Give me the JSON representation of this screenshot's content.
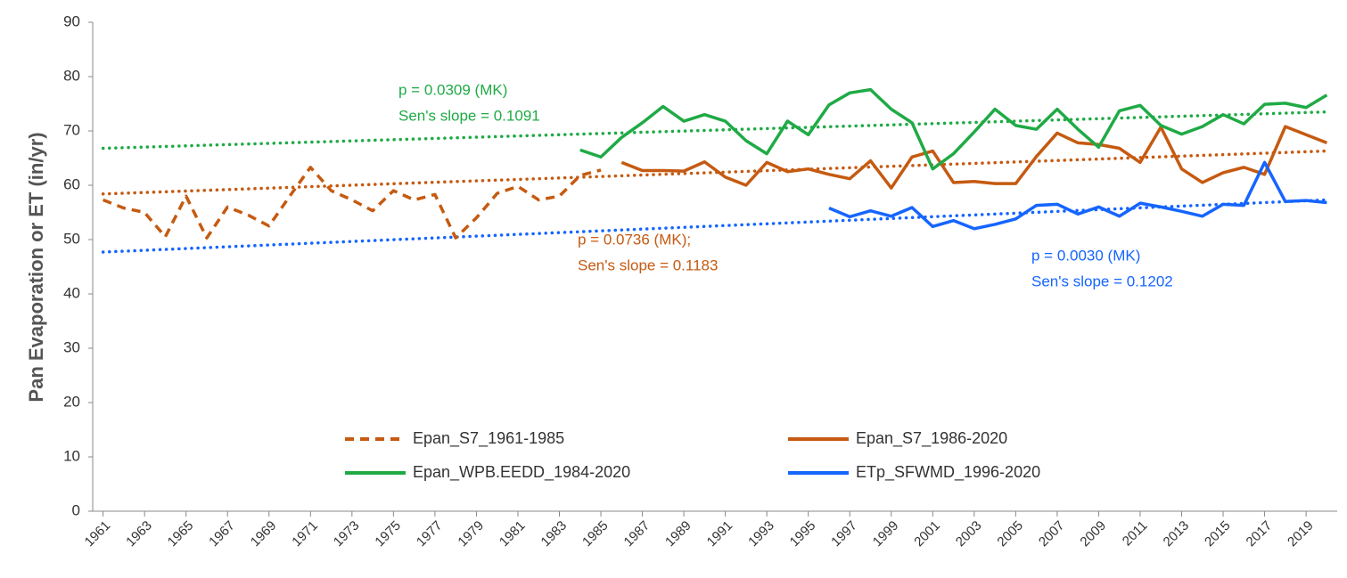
{
  "chart_data": {
    "type": "line",
    "y_label": "Pan Evaporation or ET (in/yr)",
    "x": [
      1961,
      1962,
      1963,
      1964,
      1965,
      1966,
      1967,
      1968,
      1969,
      1970,
      1971,
      1972,
      1973,
      1974,
      1975,
      1976,
      1977,
      1978,
      1979,
      1980,
      1981,
      1982,
      1983,
      1984,
      1985,
      1986,
      1987,
      1988,
      1989,
      1990,
      1991,
      1992,
      1993,
      1994,
      1995,
      1996,
      1997,
      1998,
      1999,
      2000,
      2001,
      2002,
      2003,
      2004,
      2005,
      2006,
      2007,
      2008,
      2009,
      2010,
      2011,
      2012,
      2013,
      2014,
      2015,
      2016,
      2017,
      2018,
      2019,
      2020
    ],
    "xlim": [
      1960.5,
      2020.5
    ],
    "xticks": [
      1961,
      1963,
      1965,
      1967,
      1969,
      1971,
      1973,
      1975,
      1977,
      1979,
      1981,
      1983,
      1985,
      1987,
      1989,
      1991,
      1993,
      1995,
      1997,
      1999,
      2001,
      2003,
      2005,
      2007,
      2009,
      2011,
      2013,
      2015,
      2017,
      2019
    ],
    "ylim": [
      0,
      90
    ],
    "yticks": [
      0,
      10,
      20,
      30,
      40,
      50,
      60,
      70,
      80,
      90
    ],
    "series": [
      {
        "name": "Epan_S7_1961-1985",
        "color": "#c55a11",
        "dash": true,
        "values": [
          57.3,
          55.8,
          55,
          50.5,
          58,
          50.3,
          56,
          54.5,
          52.5,
          58,
          63.3,
          59,
          57.3,
          55.3,
          59,
          57.3,
          58.3,
          50.3,
          54,
          58.5,
          59.8,
          57.3,
          58,
          61.8,
          62.8,
          null,
          null,
          null,
          null,
          null,
          null,
          null,
          null,
          null,
          null,
          null,
          null,
          null,
          null,
          null,
          null,
          null,
          null,
          null,
          null,
          null,
          null,
          null,
          null,
          null,
          null,
          null,
          null,
          null,
          null,
          null,
          null,
          null,
          null,
          null
        ]
      },
      {
        "name": "Epan_S7_1986-2020",
        "color": "#c55a11",
        "values": [
          null,
          null,
          null,
          null,
          null,
          null,
          null,
          null,
          null,
          null,
          null,
          null,
          null,
          null,
          null,
          null,
          null,
          null,
          null,
          null,
          null,
          null,
          null,
          null,
          null,
          64.2,
          62.7,
          62.7,
          62.6,
          64.3,
          61.5,
          60,
          64.2,
          62.5,
          63,
          62,
          61.2,
          64.5,
          59.5,
          65.2,
          66.3,
          60.5,
          60.7,
          60.3,
          60.3,
          65.3,
          69.6,
          67.8,
          67.5,
          66.8,
          64.2,
          70.7,
          63,
          60.5,
          62.3,
          63.3,
          62,
          70.8,
          69.3,
          67.8
        ]
      },
      {
        "name": "Epan_WPB.EEDD_1984-2020",
        "color": "#1faa45",
        "values": [
          null,
          null,
          null,
          null,
          null,
          null,
          null,
          null,
          null,
          null,
          null,
          null,
          null,
          null,
          null,
          null,
          null,
          null,
          null,
          null,
          null,
          null,
          null,
          66.5,
          65.2,
          68.8,
          71.5,
          74.5,
          71.8,
          73,
          71.8,
          68.2,
          65.8,
          71.8,
          69.3,
          74.8,
          77,
          77.6,
          74,
          71.5,
          63,
          65.8,
          69.8,
          74,
          71,
          70.3,
          74,
          70.3,
          67,
          73.7,
          74.7,
          71,
          69.4,
          70.8,
          73,
          71.3,
          74.9,
          75.1,
          74.3,
          76.6
        ]
      },
      {
        "name": "ETp_SFWMD_1996-2020",
        "color": "#1565ff",
        "values": [
          null,
          null,
          null,
          null,
          null,
          null,
          null,
          null,
          null,
          null,
          null,
          null,
          null,
          null,
          null,
          null,
          null,
          null,
          null,
          null,
          null,
          null,
          null,
          null,
          null,
          null,
          null,
          null,
          null,
          null,
          null,
          null,
          null,
          null,
          null,
          55.8,
          54.2,
          55.3,
          54.3,
          55.9,
          52.4,
          53.5,
          52,
          52.8,
          53.8,
          56.3,
          56.5,
          54.7,
          56,
          54.3,
          56.7,
          56,
          55.2,
          54.3,
          56.5,
          56.3,
          64.2,
          57,
          57.2,
          56.8
        ]
      }
    ],
    "trendlines": [
      {
        "color": "#1faa45",
        "x": [
          1961,
          2020
        ],
        "values": [
          66.8,
          73.5
        ]
      },
      {
        "color": "#c55a11",
        "x": [
          1961,
          2020
        ],
        "values": [
          58.4,
          66.3
        ]
      },
      {
        "color": "#1565ff",
        "x": [
          1961,
          2020
        ],
        "values": [
          47.7,
          57.3
        ]
      }
    ],
    "annotations": [
      {
        "color": "#1faa45",
        "lines": [
          "p = 0.0309 (MK)",
          "Sen's slope = 0.1091"
        ]
      },
      {
        "color": "#c55a11",
        "lines": [
          "p = 0.0736 (MK);",
          "Sen's slope = 0.1183"
        ]
      },
      {
        "color": "#1565ff",
        "lines": [
          "p = 0.0030 (MK)",
          "Sen's slope = 0.1202"
        ]
      }
    ]
  }
}
